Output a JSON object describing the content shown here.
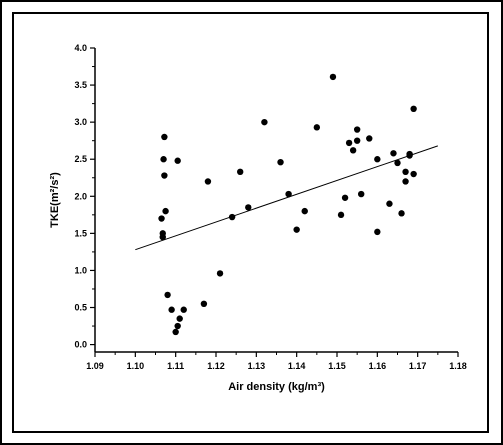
{
  "chart_data": {
    "type": "scatter",
    "xlabel": "Air density (kg/m³)",
    "ylabel": "TKE(m²/s²)",
    "xlim": [
      1.09,
      1.18
    ],
    "ylim": [
      -0.1,
      4.0
    ],
    "xticks": [
      1.09,
      1.1,
      1.11,
      1.12,
      1.13,
      1.14,
      1.15,
      1.16,
      1.17,
      1.18
    ],
    "yticks": [
      0.0,
      0.5,
      1.0,
      1.5,
      2.0,
      2.5,
      3.0,
      3.5,
      4.0
    ],
    "xtick_labels": [
      "1.09",
      "1.10",
      "1.11",
      "1.12",
      "1.13",
      "1.14",
      "1.15",
      "1.16",
      "1.17",
      "1.18"
    ],
    "ytick_labels": [
      "0.0",
      "0.5",
      "1.0",
      "1.5",
      "2.0",
      "2.5",
      "3.0",
      "3.5",
      "4.0"
    ],
    "grid": false,
    "points": [
      {
        "x": 1.1065,
        "y": 1.7
      },
      {
        "x": 1.1068,
        "y": 1.5
      },
      {
        "x": 1.1068,
        "y": 1.45
      },
      {
        "x": 1.107,
        "y": 2.5
      },
      {
        "x": 1.1072,
        "y": 2.8
      },
      {
        "x": 1.1072,
        "y": 2.28
      },
      {
        "x": 1.1075,
        "y": 1.8
      },
      {
        "x": 1.108,
        "y": 0.67
      },
      {
        "x": 1.109,
        "y": 0.47
      },
      {
        "x": 1.11,
        "y": 0.17
      },
      {
        "x": 1.1105,
        "y": 0.25
      },
      {
        "x": 1.1105,
        "y": 2.48
      },
      {
        "x": 1.111,
        "y": 0.35
      },
      {
        "x": 1.112,
        "y": 0.47
      },
      {
        "x": 1.117,
        "y": 0.55
      },
      {
        "x": 1.118,
        "y": 2.2
      },
      {
        "x": 1.121,
        "y": 0.96
      },
      {
        "x": 1.124,
        "y": 1.72
      },
      {
        "x": 1.126,
        "y": 2.33
      },
      {
        "x": 1.128,
        "y": 1.85
      },
      {
        "x": 1.132,
        "y": 3.0
      },
      {
        "x": 1.136,
        "y": 2.46
      },
      {
        "x": 1.138,
        "y": 2.03
      },
      {
        "x": 1.14,
        "y": 1.55
      },
      {
        "x": 1.142,
        "y": 1.8
      },
      {
        "x": 1.145,
        "y": 2.93
      },
      {
        "x": 1.149,
        "y": 3.61
      },
      {
        "x": 1.151,
        "y": 1.75
      },
      {
        "x": 1.152,
        "y": 1.98
      },
      {
        "x": 1.153,
        "y": 2.72
      },
      {
        "x": 1.154,
        "y": 2.62
      },
      {
        "x": 1.155,
        "y": 2.75
      },
      {
        "x": 1.155,
        "y": 2.9
      },
      {
        "x": 1.156,
        "y": 2.03
      },
      {
        "x": 1.158,
        "y": 2.78
      },
      {
        "x": 1.16,
        "y": 2.5
      },
      {
        "x": 1.16,
        "y": 1.52
      },
      {
        "x": 1.163,
        "y": 1.9
      },
      {
        "x": 1.164,
        "y": 2.58
      },
      {
        "x": 1.165,
        "y": 2.45
      },
      {
        "x": 1.166,
        "y": 1.77
      },
      {
        "x": 1.167,
        "y": 2.2
      },
      {
        "x": 1.167,
        "y": 2.33
      },
      {
        "x": 1.168,
        "y": 2.55
      },
      {
        "x": 1.169,
        "y": 2.3
      },
      {
        "x": 1.169,
        "y": 3.18
      },
      {
        "x": 1.168,
        "y": 2.57
      }
    ],
    "trendline": {
      "x": [
        1.1,
        1.175
      ],
      "y": [
        1.28,
        2.68
      ]
    }
  }
}
